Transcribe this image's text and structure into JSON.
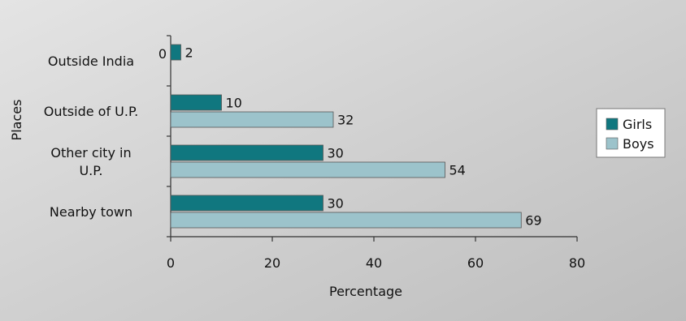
{
  "chart_data": {
    "type": "bar",
    "orientation": "horizontal",
    "categories": [
      "Outside India",
      "Outside of U.P.",
      "Other city in U.P.",
      "Nearby town"
    ],
    "category_lines": [
      [
        "Outside India"
      ],
      [
        "Outside of U.P."
      ],
      [
        "Other city in",
        "U.P."
      ],
      [
        "Nearby town"
      ]
    ],
    "series": [
      {
        "name": "Girls",
        "values": [
          2,
          10,
          30,
          30
        ],
        "value_labels": [
          "2",
          "10",
          "30",
          "30"
        ],
        "color": "#10777f"
      },
      {
        "name": "Boys",
        "values": [
          0,
          32,
          54,
          69
        ],
        "value_labels": [
          "0",
          "32",
          "54",
          "69"
        ],
        "color": "#9cc3cb"
      }
    ],
    "xlabel": "Percentage",
    "ylabel": "Places",
    "xlim": [
      0,
      80
    ],
    "xticks": [
      0,
      20,
      40,
      60,
      80
    ],
    "grid": false,
    "legend_position": "right"
  },
  "colors": {
    "background": "#cfcfcf",
    "axis": "#333333",
    "bar_border": "#555555"
  }
}
